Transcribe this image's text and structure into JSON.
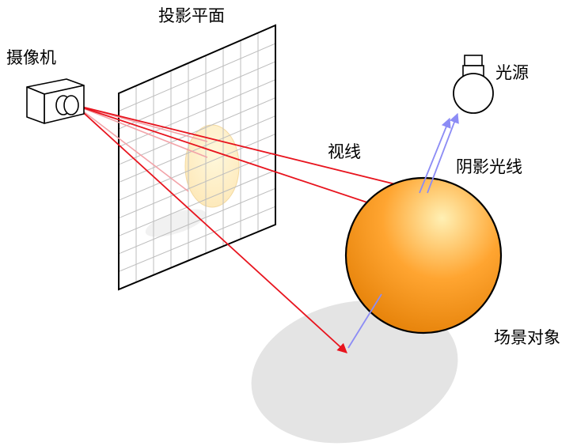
{
  "labels": {
    "projection_plane": "投影平面",
    "camera": "摄像机",
    "light_source": "光源",
    "view_ray": "视线",
    "shadow_ray": "阴影光线",
    "scene_object": "场景对象"
  },
  "colors": {
    "view_ray": "#e8141e",
    "view_ray_faded": "#f2a3a8",
    "shadow_ray": "#8c8cf5",
    "sphere_light": "#fff0b4",
    "sphere_mid": "#ffa531",
    "sphere_dark": "#e07a00",
    "shadow": "#e4e4e4",
    "grid": "#bdbdbd",
    "outline": "#000000"
  },
  "icons": {
    "camera": "camera-icon",
    "light": "light-bulb-icon"
  }
}
